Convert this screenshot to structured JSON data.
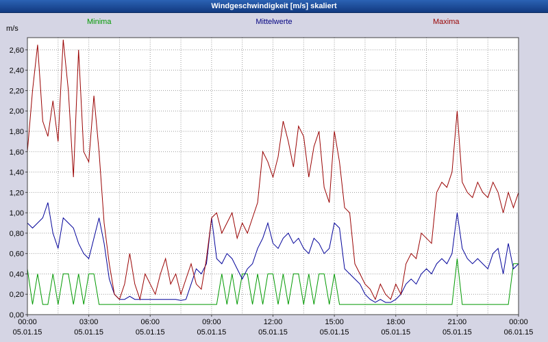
{
  "window": {
    "title": "Windgeschwindigkeit [m/s] skaliert"
  },
  "legend": {
    "minima": "Minima",
    "mittelwerte": "Mittelwerte",
    "maxima": "Maxima"
  },
  "colors": {
    "titlebar_top": "#2b62b4",
    "titlebar_bottom": "#123a80",
    "background": "#d5d5e4",
    "plot_bg": "#ffffff",
    "grid": "#999999",
    "frame": "#404040",
    "minima": "#009900",
    "mittelwerte": "#000099",
    "maxima": "#990000"
  },
  "chart_data": {
    "type": "line",
    "title": "Windgeschwindigkeit [m/s] skaliert",
    "y_unit": "m/s",
    "ylim": [
      0,
      2.72
    ],
    "y_tick_step": 0.2,
    "y_tick_labels": [
      "0,00",
      "0,20",
      "0,40",
      "0,60",
      "0,80",
      "1,00",
      "1,20",
      "1,40",
      "1,60",
      "1,80",
      "2,00",
      "2,20",
      "2,40",
      "2,60"
    ],
    "x_hours_start": 0,
    "x_hours_end": 24,
    "x_step_hours": 0.25,
    "minor_grid_hours": 1.5,
    "x_ticks": [
      {
        "hour": 0,
        "time": "00:00",
        "date": "05.01.15"
      },
      {
        "hour": 3,
        "time": "03:00",
        "date": "05.01.15"
      },
      {
        "hour": 6,
        "time": "06:00",
        "date": "05.01.15"
      },
      {
        "hour": 9,
        "time": "09:00",
        "date": "05.01.15"
      },
      {
        "hour": 12,
        "time": "12:00",
        "date": "05.01.15"
      },
      {
        "hour": 15,
        "time": "15:00",
        "date": "05.01.15"
      },
      {
        "hour": 18,
        "time": "18:00",
        "date": "05.01.15"
      },
      {
        "hour": 21,
        "time": "21:00",
        "date": "05.01.15"
      },
      {
        "hour": 24,
        "time": "00:00",
        "date": "06.01.15"
      }
    ],
    "series": [
      {
        "name": "Minima",
        "color": "#009900",
        "values": [
          0.45,
          0.1,
          0.4,
          0.1,
          0.1,
          0.4,
          0.1,
          0.4,
          0.4,
          0.1,
          0.4,
          0.1,
          0.4,
          0.4,
          0.1,
          0.1,
          0.1,
          0.1,
          0.1,
          0.1,
          0.1,
          0.1,
          0.1,
          0.1,
          0.1,
          0.1,
          0.1,
          0.1,
          0.1,
          0.1,
          0.1,
          0.1,
          0.1,
          0.1,
          0.1,
          0.1,
          0.1,
          0.1,
          0.4,
          0.1,
          0.4,
          0.1,
          0.4,
          0.4,
          0.1,
          0.4,
          0.1,
          0.4,
          0.4,
          0.1,
          0.4,
          0.1,
          0.4,
          0.4,
          0.1,
          0.4,
          0.1,
          0.4,
          0.4,
          0.1,
          0.4,
          0.1,
          0.1,
          0.1,
          0.1,
          0.1,
          0.1,
          0.1,
          0.1,
          0.1,
          0.1,
          0.1,
          0.1,
          0.1,
          0.1,
          0.1,
          0.1,
          0.1,
          0.1,
          0.1,
          0.1,
          0.1,
          0.1,
          0.1,
          0.55,
          0.1,
          0.1,
          0.1,
          0.1,
          0.1,
          0.1,
          0.1,
          0.1,
          0.1,
          0.1,
          0.5,
          0.5
        ]
      },
      {
        "name": "Mittelwerte",
        "color": "#000099",
        "values": [
          0.9,
          0.85,
          0.9,
          0.95,
          1.1,
          0.8,
          0.65,
          0.95,
          0.9,
          0.85,
          0.7,
          0.6,
          0.55,
          0.75,
          0.95,
          0.7,
          0.35,
          0.2,
          0.15,
          0.15,
          0.18,
          0.15,
          0.15,
          0.15,
          0.15,
          0.15,
          0.15,
          0.15,
          0.15,
          0.15,
          0.14,
          0.15,
          0.3,
          0.45,
          0.4,
          0.5,
          0.95,
          0.55,
          0.5,
          0.6,
          0.55,
          0.45,
          0.35,
          0.45,
          0.5,
          0.65,
          0.75,
          0.9,
          0.7,
          0.65,
          0.75,
          0.8,
          0.7,
          0.75,
          0.65,
          0.6,
          0.75,
          0.7,
          0.6,
          0.65,
          0.9,
          0.85,
          0.45,
          0.4,
          0.35,
          0.3,
          0.2,
          0.15,
          0.12,
          0.15,
          0.12,
          0.12,
          0.15,
          0.2,
          0.3,
          0.35,
          0.3,
          0.4,
          0.45,
          0.4,
          0.5,
          0.55,
          0.5,
          0.6,
          1.0,
          0.65,
          0.55,
          0.5,
          0.55,
          0.5,
          0.45,
          0.6,
          0.65,
          0.4,
          0.7,
          0.45,
          0.5
        ]
      },
      {
        "name": "Maxima",
        "color": "#990000",
        "values": [
          1.6,
          2.2,
          2.65,
          1.9,
          1.75,
          2.1,
          1.7,
          2.7,
          2.2,
          1.35,
          2.6,
          1.6,
          1.5,
          2.15,
          1.6,
          0.9,
          0.5,
          0.2,
          0.15,
          0.3,
          0.6,
          0.3,
          0.15,
          0.4,
          0.3,
          0.2,
          0.4,
          0.55,
          0.3,
          0.4,
          0.2,
          0.35,
          0.5,
          0.3,
          0.25,
          0.55,
          0.95,
          1.0,
          0.8,
          0.9,
          1.0,
          0.75,
          0.9,
          0.8,
          0.95,
          1.1,
          1.6,
          1.5,
          1.35,
          1.55,
          1.9,
          1.7,
          1.45,
          1.85,
          1.75,
          1.35,
          1.65,
          1.8,
          1.25,
          1.1,
          1.8,
          1.5,
          1.05,
          1.0,
          0.5,
          0.4,
          0.3,
          0.25,
          0.15,
          0.3,
          0.2,
          0.15,
          0.3,
          0.2,
          0.5,
          0.6,
          0.55,
          0.8,
          0.75,
          0.7,
          1.2,
          1.3,
          1.25,
          1.4,
          2.0,
          1.3,
          1.2,
          1.15,
          1.3,
          1.2,
          1.15,
          1.3,
          1.2,
          1.0,
          1.2,
          1.05,
          1.2
        ]
      }
    ]
  }
}
